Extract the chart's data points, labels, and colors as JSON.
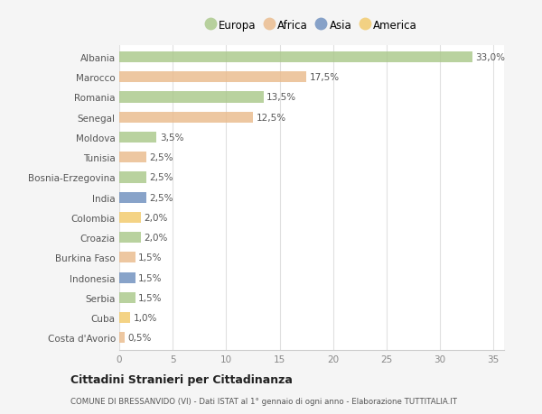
{
  "countries": [
    "Albania",
    "Marocco",
    "Romania",
    "Senegal",
    "Moldova",
    "Tunisia",
    "Bosnia-Erzegovina",
    "India",
    "Colombia",
    "Croazia",
    "Burkina Faso",
    "Indonesia",
    "Serbia",
    "Cuba",
    "Costa d'Avorio"
  ],
  "values": [
    33.0,
    17.5,
    13.5,
    12.5,
    3.5,
    2.5,
    2.5,
    2.5,
    2.0,
    2.0,
    1.5,
    1.5,
    1.5,
    1.0,
    0.5
  ],
  "labels": [
    "33,0%",
    "17,5%",
    "13,5%",
    "12,5%",
    "3,5%",
    "2,5%",
    "2,5%",
    "2,5%",
    "2,0%",
    "2,0%",
    "1,5%",
    "1,5%",
    "1,5%",
    "1,0%",
    "0,5%"
  ],
  "colors": [
    "#aac88a",
    "#eabb8c",
    "#aac88a",
    "#eabb8c",
    "#aac88a",
    "#eabb8c",
    "#aac88a",
    "#6e8fbe",
    "#f2ca6a",
    "#aac88a",
    "#eabb8c",
    "#6e8fbe",
    "#aac88a",
    "#f2ca6a",
    "#eabb8c"
  ],
  "legend_labels": [
    "Europa",
    "Africa",
    "Asia",
    "America"
  ],
  "legend_colors": [
    "#aac88a",
    "#eabb8c",
    "#6e8fbe",
    "#f2ca6a"
  ],
  "title": "Cittadini Stranieri per Cittadinanza",
  "subtitle": "COMUNE DI BRESSANVIDO (VI) - Dati ISTAT al 1° gennaio di ogni anno - Elaborazione TUTTITALIA.IT",
  "xlim": [
    0,
    36
  ],
  "xticks": [
    0,
    5,
    10,
    15,
    20,
    25,
    30,
    35
  ],
  "bg_color": "#f5f5f5",
  "plot_bg_color": "#ffffff",
  "grid_color": "#e0e0e0"
}
